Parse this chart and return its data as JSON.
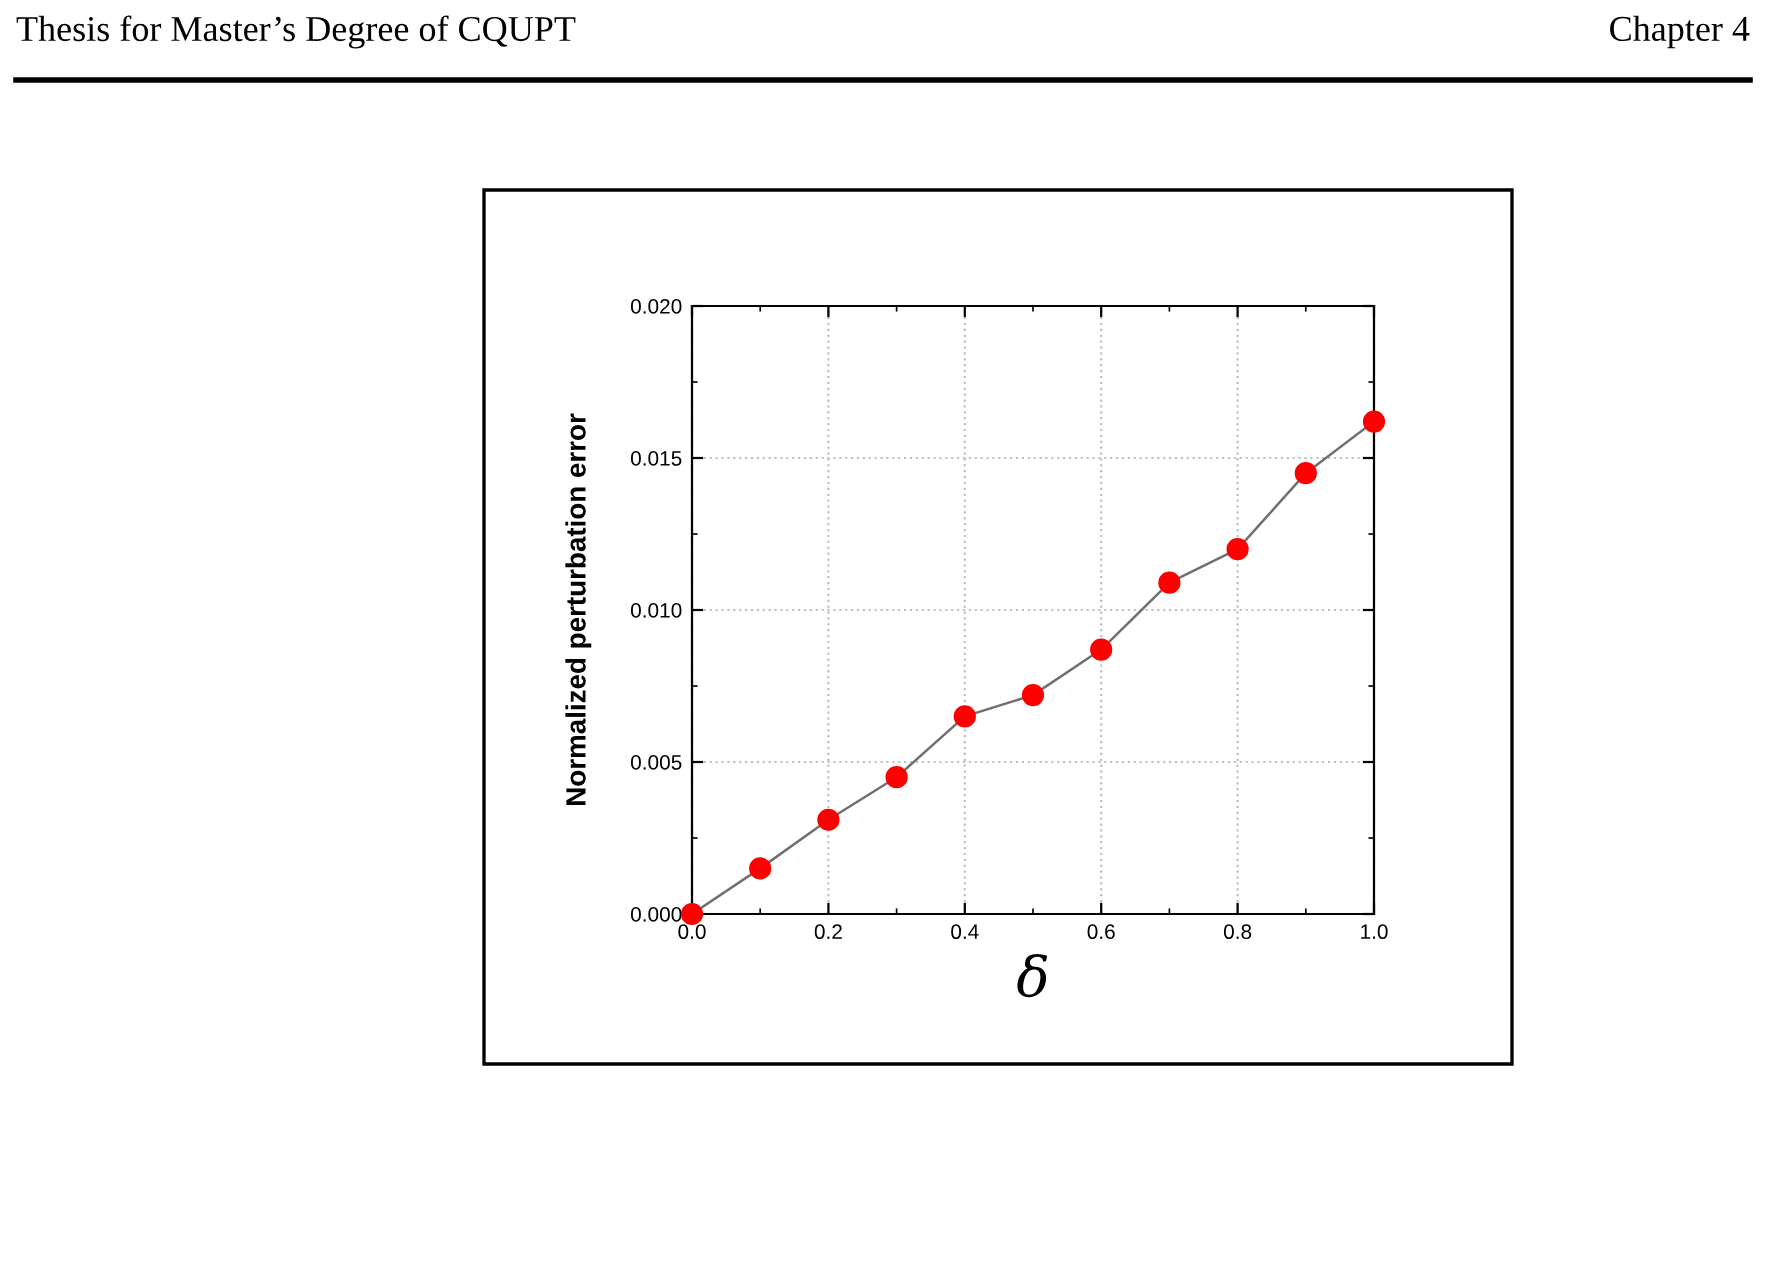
{
  "chart_data": {
    "type": "line",
    "x": [
      0.0,
      0.1,
      0.2,
      0.3,
      0.4,
      0.5,
      0.6,
      0.7,
      0.8,
      0.9,
      1.0
    ],
    "series": [
      {
        "color": "#ff0000",
        "values": [
          0.0,
          0.0015,
          0.0031,
          0.0045,
          0.0065,
          0.0072,
          0.0087,
          0.0109,
          0.012,
          0.0145,
          0.0162
        ]
      }
    ],
    "xlabel": "δ",
    "ylabel": "Normalized perturbation error",
    "xlim": [
      0.0,
      1.0
    ],
    "ylim": [
      0.0,
      0.02
    ],
    "xticks": [
      {
        "value": 0,
        "label": "0.0"
      },
      0.2,
      0.4,
      0.6,
      0.8,
      {
        "value": 1,
        "label": "1.0"
      }
    ],
    "yticks": [
      {
        "value": 0,
        "label": "0.000"
      },
      0.005,
      {
        "value": 0.01,
        "label": "0.010"
      },
      0.015,
      {
        "value": 0.02,
        "label": "0.020"
      }
    ],
    "grid": true,
    "marker": "circle",
    "line_style": "solid",
    "annotations": [
      "Thesis for Master’s Degree of CQUPT",
      "Chapter 4"
    ]
  }
}
